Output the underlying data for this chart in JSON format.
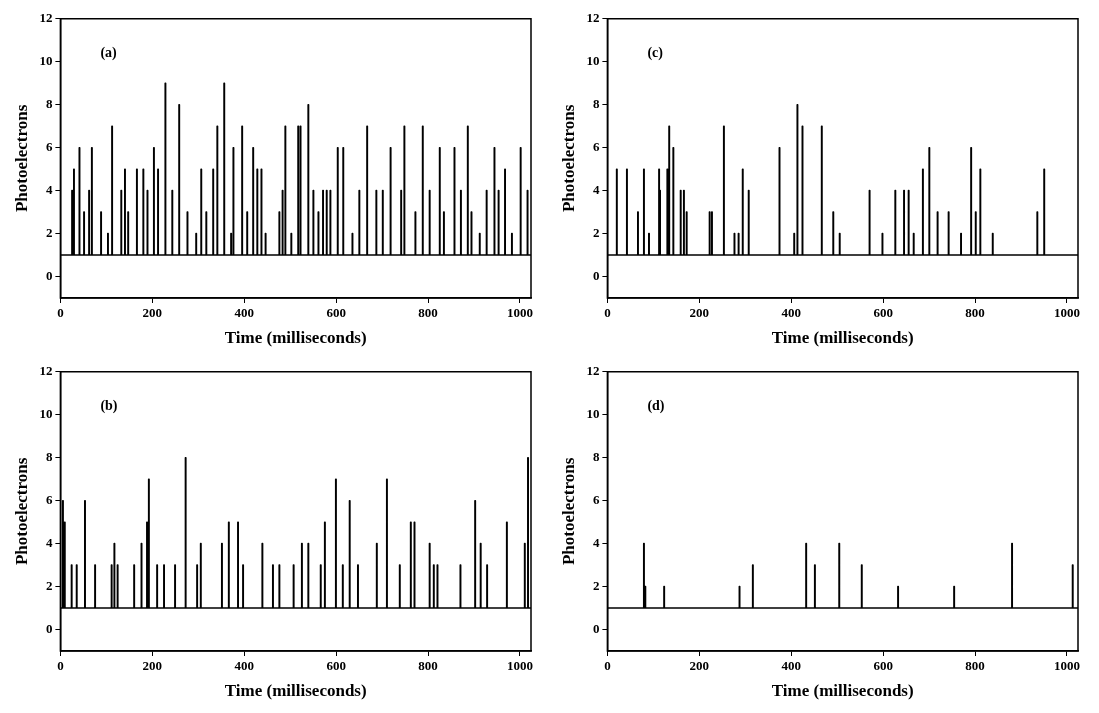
{
  "chart_data": [
    {
      "type": "step",
      "annotations": [
        "(a)"
      ],
      "xlabel": "Time (milliseconds)",
      "ylabel": "Photoelectrons",
      "xlim": [
        0,
        1024
      ],
      "ylim": [
        -1,
        12
      ],
      "xticks": [
        0,
        200,
        400,
        600,
        800,
        1000
      ],
      "yticks": [
        0,
        2,
        4,
        6,
        8,
        10,
        12
      ],
      "series": [
        {
          "color": "#000000",
          "x": [
            0,
            25,
            26,
            29,
            30,
            41,
            42,
            51,
            52,
            62,
            63,
            68,
            69,
            88,
            89,
            103,
            104,
            112,
            113,
            132,
            133,
            140,
            141,
            147,
            148,
            166,
            167,
            180,
            181,
            189,
            190,
            203,
            204,
            212,
            213,
            228,
            229,
            243,
            244,
            258,
            259,
            276,
            277,
            295,
            296,
            306,
            307,
            317,
            318,
            332,
            333,
            341,
            342,
            356,
            357,
            371,
            372,
            376,
            377,
            395,
            396,
            406,
            407,
            419,
            420,
            428,
            429,
            437,
            438,
            446,
            447,
            476,
            477,
            483,
            484,
            489,
            490,
            502,
            503,
            517,
            518,
            522,
            523,
            539,
            540,
            550,
            551,
            561,
            562,
            571,
            572,
            579,
            580,
            587,
            588,
            603,
            604,
            615,
            616,
            635,
            636,
            650,
            651,
            667,
            668,
            687,
            688,
            701,
            702,
            718,
            719,
            741,
            742,
            748,
            749,
            772,
            773,
            788,
            789,
            803,
            804,
            825,
            826,
            834,
            835,
            857,
            858,
            871,
            872,
            886,
            887,
            894,
            895,
            912,
            913,
            927,
            928,
            944,
            945,
            953,
            954,
            967,
            968,
            982,
            983,
            1001,
            1002,
            1016,
            1017,
            1024
          ],
          "values": [
            1,
            4,
            1,
            5,
            1,
            6,
            1,
            3,
            1,
            4,
            1,
            6,
            1,
            3,
            1,
            2,
            1,
            7,
            1,
            4,
            1,
            5,
            1,
            3,
            1,
            5,
            1,
            5,
            1,
            4,
            1,
            6,
            1,
            5,
            1,
            9,
            1,
            4,
            1,
            8,
            1,
            3,
            1,
            2,
            1,
            5,
            1,
            3,
            1,
            5,
            1,
            7,
            1,
            9,
            1,
            2,
            1,
            6,
            1,
            7,
            1,
            3,
            1,
            6,
            1,
            5,
            1,
            5,
            1,
            2,
            1,
            3,
            1,
            4,
            1,
            7,
            1,
            2,
            1,
            7,
            1,
            7,
            1,
            8,
            1,
            4,
            1,
            3,
            1,
            4,
            1,
            4,
            1,
            4,
            1,
            6,
            1,
            6,
            1,
            2,
            1,
            4,
            1,
            7,
            1,
            4,
            1,
            4,
            1,
            6,
            1,
            4,
            1,
            7,
            1,
            3,
            1,
            7,
            1,
            4,
            1,
            6,
            1,
            3,
            1,
            6,
            1,
            4,
            1,
            7,
            1,
            3,
            1,
            2,
            1,
            4,
            1,
            6,
            1,
            4,
            1,
            5,
            1,
            2,
            1,
            6,
            1,
            4,
            1,
            1
          ]
        }
      ]
    },
    {
      "type": "step",
      "annotations": [
        "(c)"
      ],
      "xlabel": "Time (milliseconds)",
      "ylabel": "Photoelectrons",
      "xlim": [
        0,
        1024
      ],
      "ylim": [
        -1,
        12
      ],
      "xticks": [
        0,
        200,
        400,
        600,
        800,
        1000
      ],
      "yticks": [
        0,
        2,
        4,
        6,
        8,
        10,
        12
      ],
      "series": [
        {
          "color": "#000000",
          "x": [
            0,
            20,
            21,
            42,
            43,
            66,
            67,
            79,
            80,
            90,
            91,
            112,
            113,
            114,
            115,
            130,
            131,
            134,
            135,
            143,
            144,
            159,
            160,
            166,
            167,
            172,
            173,
            222,
            223,
            227,
            228,
            253,
            254,
            276,
            277,
            285,
            286,
            294,
            295,
            307,
            308,
            374,
            375,
            406,
            407,
            413,
            414,
            424,
            425,
            466,
            467,
            491,
            492,
            505,
            506,
            570,
            571,
            598,
            599,
            626,
            627,
            645,
            646,
            655,
            656,
            666,
            667,
            686,
            687,
            700,
            701,
            718,
            719,
            742,
            743,
            769,
            770,
            791,
            792,
            801,
            802,
            811,
            812,
            838,
            839,
            935,
            936,
            950,
            951,
            1024
          ],
          "values": [
            1,
            5,
            1,
            5,
            1,
            3,
            1,
            5,
            1,
            2,
            1,
            5,
            1,
            4,
            1,
            5,
            1,
            7,
            1,
            6,
            1,
            4,
            1,
            4,
            1,
            3,
            1,
            3,
            1,
            3,
            1,
            7,
            1,
            2,
            1,
            2,
            1,
            5,
            1,
            4,
            1,
            6,
            1,
            2,
            1,
            8,
            1,
            7,
            1,
            7,
            1,
            3,
            1,
            2,
            1,
            4,
            1,
            2,
            1,
            4,
            1,
            4,
            1,
            4,
            1,
            2,
            1,
            5,
            1,
            6,
            1,
            3,
            1,
            3,
            1,
            2,
            1,
            6,
            1,
            3,
            1,
            5,
            1,
            2,
            1,
            3,
            1,
            5,
            1,
            1
          ]
        }
      ]
    },
    {
      "type": "step",
      "annotations": [
        "(b)"
      ],
      "xlabel": "Time (milliseconds)",
      "ylabel": "Photoelectrons",
      "xlim": [
        0,
        1024
      ],
      "ylim": [
        -1,
        12
      ],
      "xticks": [
        0,
        200,
        400,
        600,
        800,
        1000
      ],
      "yticks": [
        0,
        2,
        4,
        6,
        8,
        10,
        12
      ],
      "series": [
        {
          "color": "#000000",
          "x": [
            0,
            5,
            6,
            9,
            10,
            24,
            25,
            35,
            36,
            53,
            54,
            75,
            76,
            111,
            112,
            117,
            118,
            124,
            125,
            160,
            161,
            176,
            177,
            188,
            189,
            192,
            193,
            210,
            211,
            225,
            226,
            249,
            250,
            272,
            273,
            297,
            298,
            305,
            306,
            351,
            352,
            366,
            367,
            386,
            387,
            397,
            398,
            439,
            440,
            462,
            463,
            476,
            477,
            507,
            508,
            525,
            526,
            539,
            540,
            566,
            567,
            575,
            576,
            599,
            600,
            614,
            615,
            629,
            630,
            647,
            648,
            688,
            689,
            710,
            711,
            738,
            739,
            762,
            763,
            770,
            771,
            803,
            804,
            812,
            813,
            820,
            821,
            870,
            871,
            902,
            903,
            914,
            915,
            928,
            929,
            971,
            972,
            1010,
            1011,
            1017,
            1018,
            1024
          ],
          "values": [
            1,
            6,
            1,
            5,
            1,
            3,
            1,
            3,
            1,
            6,
            1,
            3,
            1,
            3,
            1,
            4,
            1,
            3,
            1,
            3,
            1,
            4,
            1,
            5,
            1,
            7,
            1,
            3,
            1,
            3,
            1,
            3,
            1,
            8,
            1,
            3,
            1,
            4,
            1,
            4,
            1,
            5,
            1,
            5,
            1,
            3,
            1,
            4,
            1,
            3,
            1,
            3,
            1,
            3,
            1,
            4,
            1,
            4,
            1,
            3,
            1,
            5,
            1,
            7,
            1,
            3,
            1,
            6,
            1,
            3,
            1,
            4,
            1,
            7,
            1,
            3,
            1,
            5,
            1,
            5,
            1,
            4,
            1,
            3,
            1,
            3,
            1,
            3,
            1,
            6,
            1,
            4,
            1,
            3,
            1,
            5,
            1,
            4,
            1,
            8,
            1,
            1
          ]
        }
      ]
    },
    {
      "type": "step",
      "annotations": [
        "(d)"
      ],
      "xlabel": "Time (milliseconds)",
      "ylabel": "Photoelectrons",
      "xlim": [
        0,
        1024
      ],
      "ylim": [
        -1,
        12
      ],
      "xticks": [
        0,
        200,
        400,
        600,
        800,
        1000
      ],
      "yticks": [
        0,
        2,
        4,
        6,
        8,
        10,
        12
      ],
      "series": [
        {
          "color": "#000000",
          "x": [
            0,
            79,
            80,
            82,
            83,
            123,
            124,
            287,
            288,
            316,
            317,
            432,
            433,
            451,
            452,
            504,
            505,
            553,
            554,
            632,
            633,
            754,
            755,
            880,
            881,
            1012,
            1013,
            1024
          ],
          "values": [
            1,
            4,
            1,
            2,
            1,
            2,
            1,
            2,
            1,
            3,
            1,
            4,
            1,
            3,
            1,
            4,
            1,
            3,
            1,
            2,
            1,
            2,
            1,
            4,
            1,
            3,
            1,
            1
          ]
        }
      ]
    }
  ]
}
